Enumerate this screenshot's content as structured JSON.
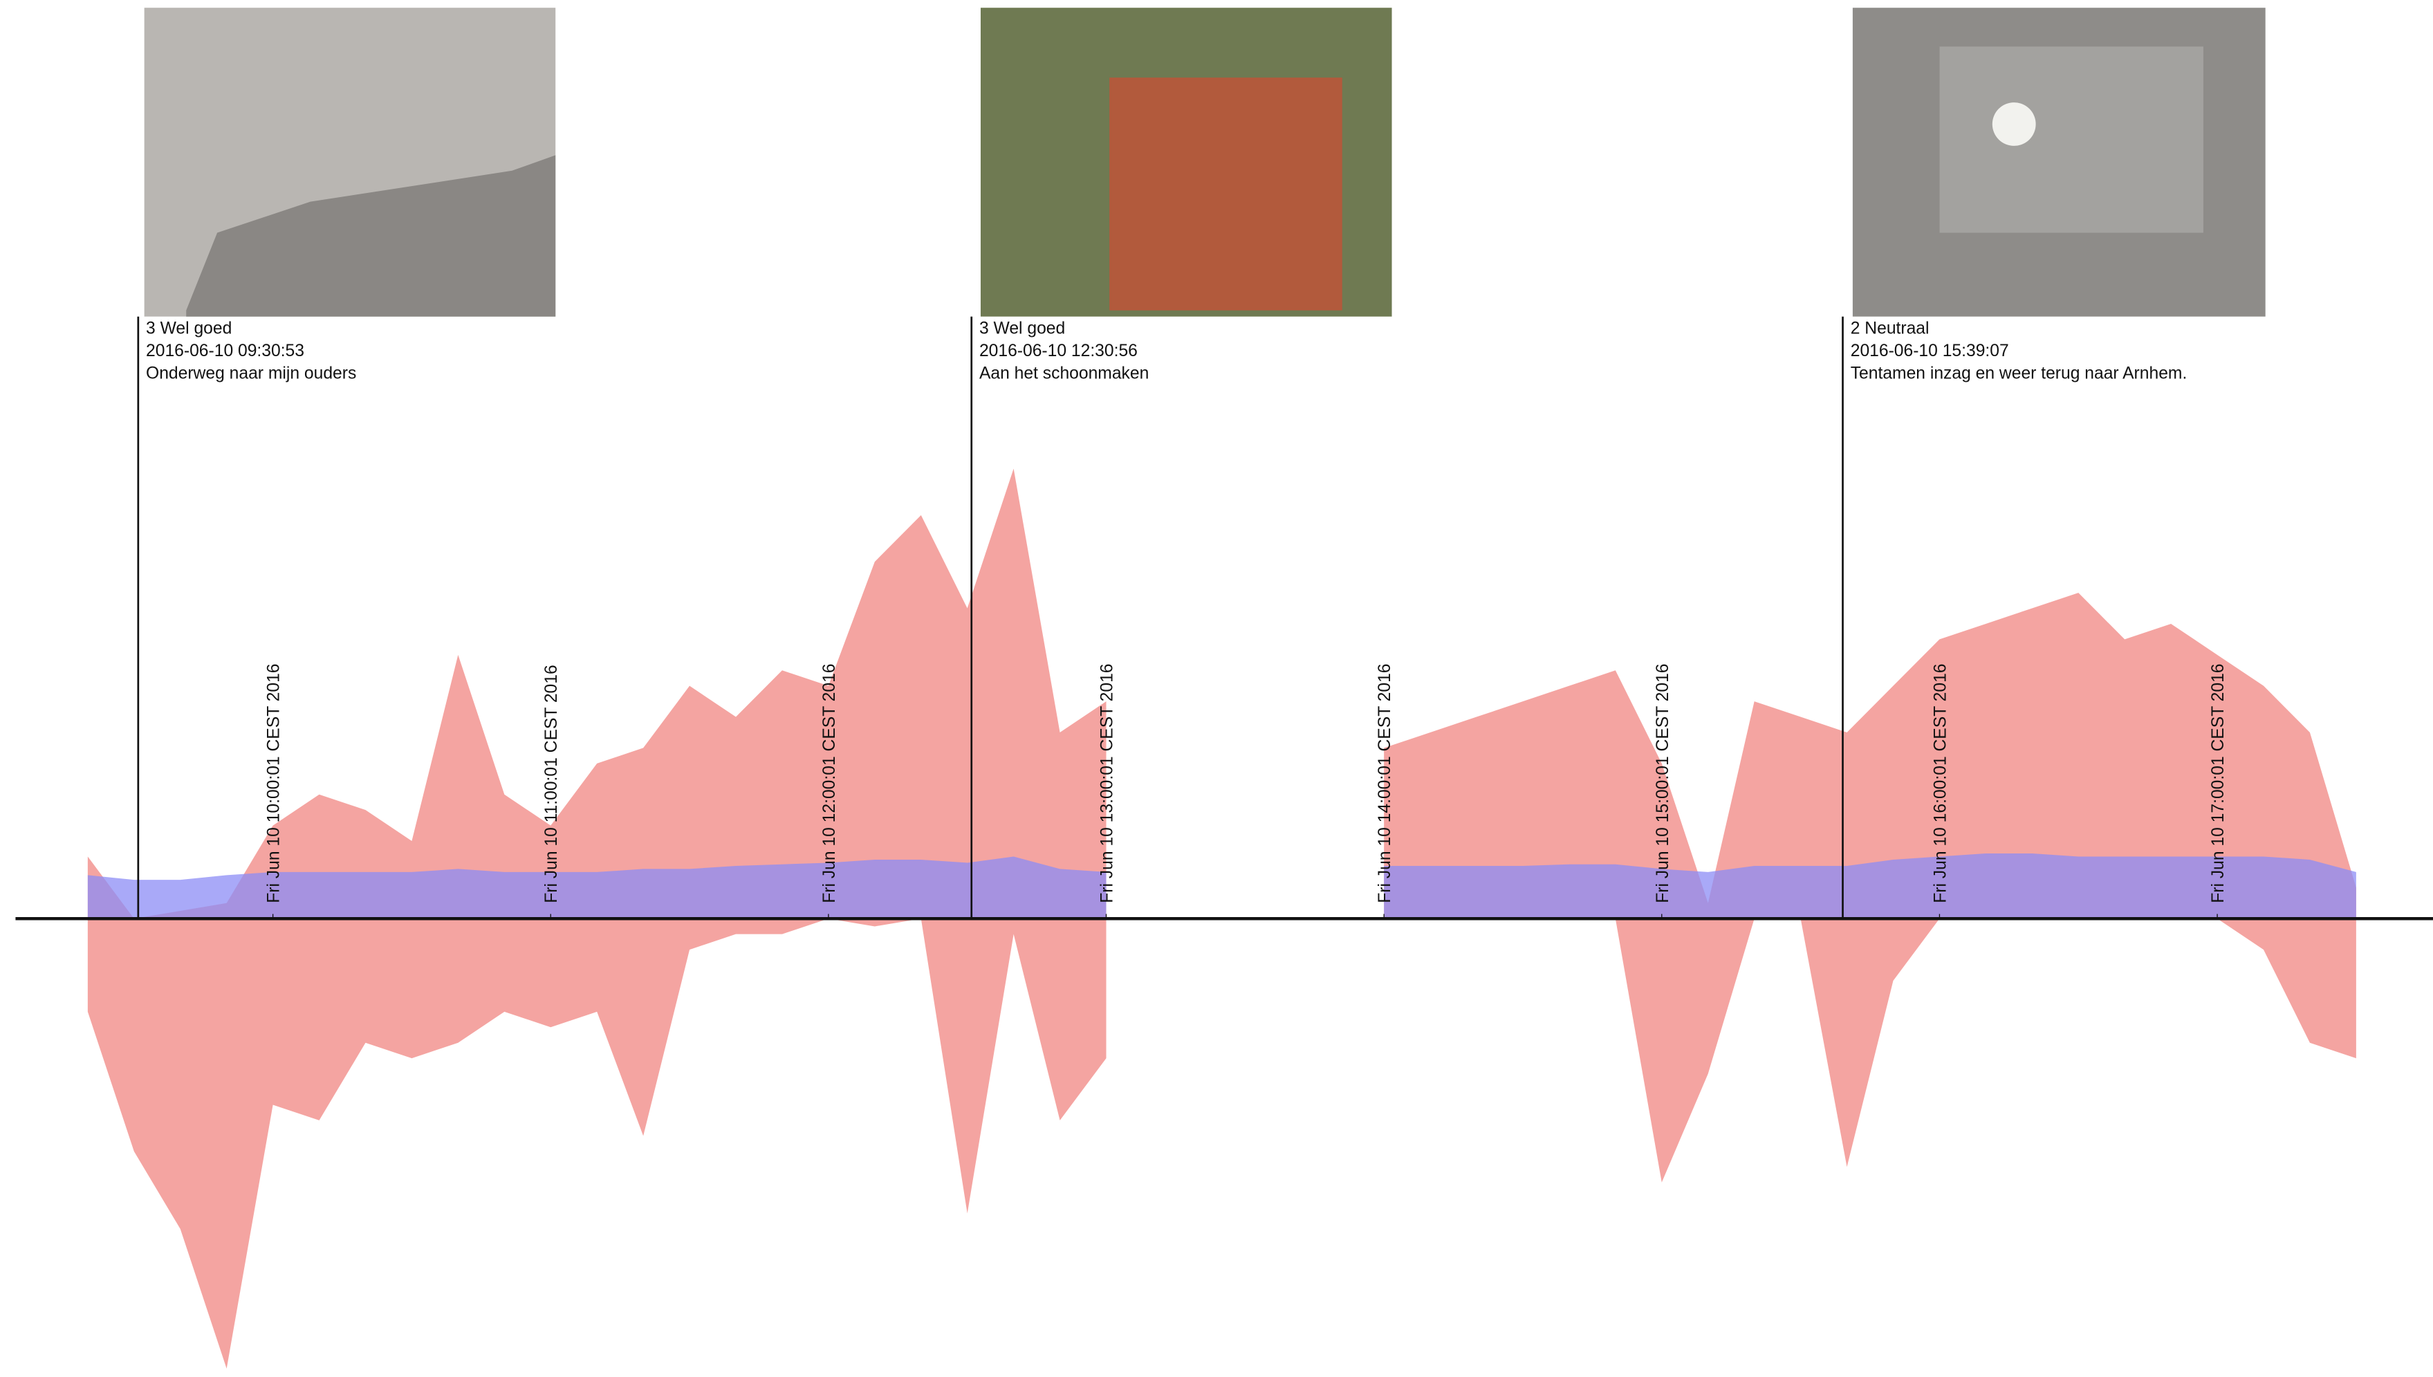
{
  "chart_data": {
    "type": "area",
    "xlim": [
      544.4,
      1066.6
    ],
    "xticks": [
      {
        "value": 600,
        "label": "Fri Jun 10 10:00:01 CEST 2016"
      },
      {
        "value": 660,
        "label": "Fri Jun 10 11:00:01 CEST 2016"
      },
      {
        "value": 720,
        "label": "Fri Jun 10 12:00:01 CEST 2016"
      },
      {
        "value": 780,
        "label": "Fri Jun 10 13:00:01 CEST 2016"
      },
      {
        "value": 840,
        "label": "Fri Jun 10 14:00:01 CEST 2016"
      },
      {
        "value": 900,
        "label": "Fri Jun 10 15:00:01 CEST 2016"
      },
      {
        "value": 960,
        "label": "Fri Jun 10 16:00:01 CEST 2016"
      },
      {
        "value": 1020,
        "label": "Fri Jun 10 17:00:01 CEST 2016"
      }
    ],
    "x": [
      560,
      570,
      580,
      590,
      600,
      610,
      620,
      630,
      640,
      650,
      660,
      670,
      680,
      690,
      700,
      710,
      720,
      730,
      740,
      750,
      760,
      770,
      780,
      790,
      800,
      810,
      820,
      830,
      840,
      850,
      860,
      870,
      880,
      890,
      900,
      910,
      920,
      930,
      940,
      950,
      960,
      970,
      980,
      990,
      1000,
      1010,
      1020,
      1030,
      1040,
      1050
    ],
    "series": [
      {
        "color": "#f4a4a1",
        "values": [
          40,
          0,
          5,
          10,
          60,
          80,
          70,
          50,
          170,
          80,
          60,
          100,
          110,
          150,
          130,
          160,
          150,
          230,
          260,
          200,
          290,
          120,
          140,
          null,
          null,
          null,
          null,
          null,
          110,
          120,
          130,
          140,
          150,
          160,
          100,
          10,
          140,
          130,
          120,
          150,
          180,
          190,
          200,
          210,
          180,
          190,
          170,
          150,
          120,
          20
        ]
      },
      {
        "color": "#f4a4a1",
        "values": [
          -60,
          -150,
          -200,
          -290,
          -120,
          -130,
          -80,
          -90,
          -80,
          -60,
          -70,
          -60,
          -140,
          -20,
          -10,
          -10,
          0,
          -5,
          0,
          -190,
          -10,
          -130,
          -90,
          null,
          null,
          null,
          null,
          null,
          0,
          0,
          0,
          0,
          0,
          0,
          -170,
          -100,
          0,
          0,
          -160,
          -40,
          0,
          0,
          0,
          0,
          0,
          0,
          0,
          -20,
          -80,
          -90
        ]
      },
      {
        "color": "#8c8cf5",
        "values": [
          28,
          25,
          25,
          28,
          30,
          30,
          30,
          30,
          32,
          30,
          30,
          30,
          32,
          32,
          34,
          35,
          36,
          38,
          38,
          36,
          40,
          32,
          30,
          null,
          null,
          null,
          null,
          null,
          34,
          34,
          34,
          34,
          35,
          35,
          32,
          30,
          34,
          34,
          34,
          38,
          40,
          42,
          42,
          40,
          40,
          40,
          40,
          40,
          38,
          30
        ]
      }
    ],
    "annotations": [
      {
        "x": 570.9,
        "lines": [
          "3 Wel goed",
          "2016-06-10 09:30:53",
          "Onderweg naar mijn ouders"
        ]
      },
      {
        "x": 750.9,
        "lines": [
          "3 Wel goed",
          "2016-06-10 12:30:56",
          "Aan het schoonmaken"
        ]
      },
      {
        "x": 939.1,
        "lines": [
          "2 Neutraal",
          "2016-06-10 15:39:07",
          "Tentamen inzag en weer terug naar Arnhem."
        ]
      }
    ]
  }
}
